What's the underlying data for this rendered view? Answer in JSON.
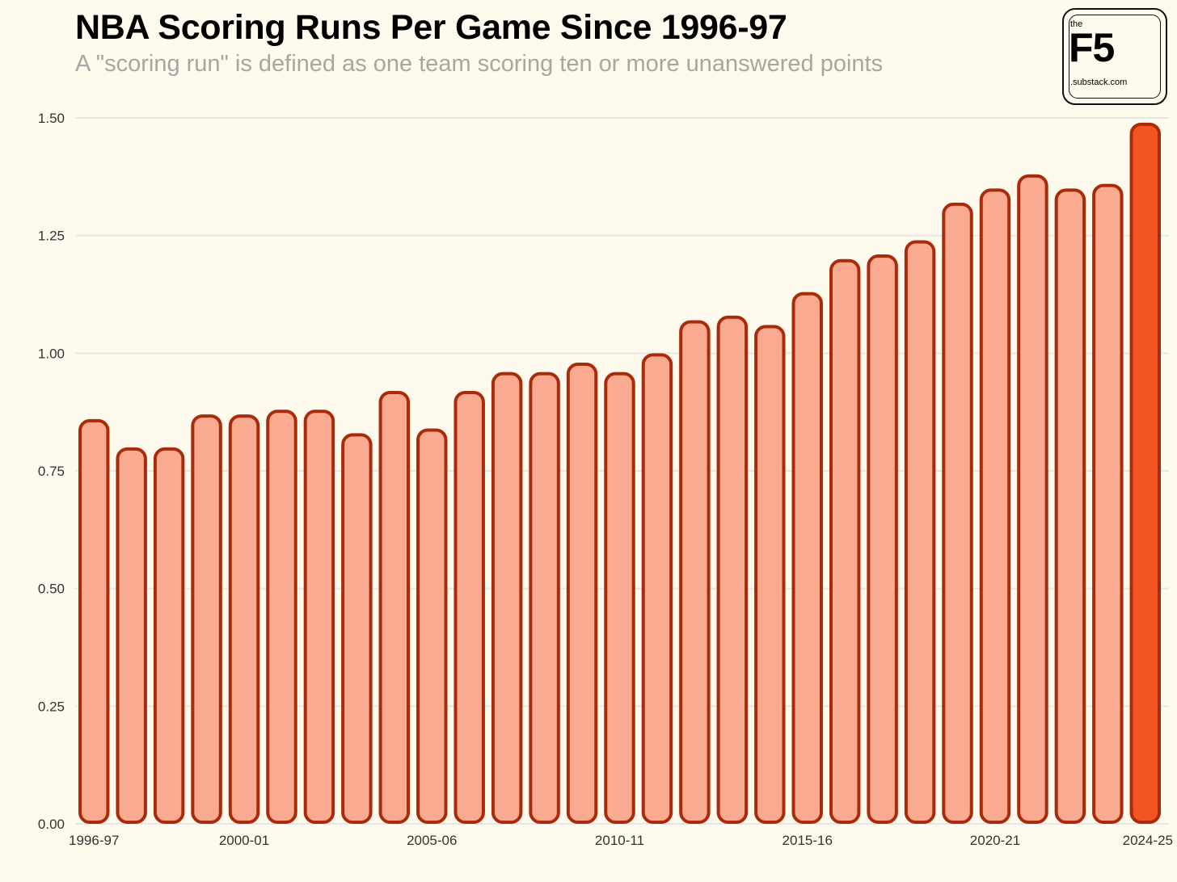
{
  "header": {
    "title": "NBA Scoring Runs Per Game Since 1996-97",
    "subtitle": "A \"scoring run\" is defined as one team scoring ten or more unanswered points"
  },
  "logo": {
    "the": "the",
    "main": "F5",
    "sub": ".substack.com"
  },
  "colors": {
    "background": "#fffaee",
    "bar_fill": "#fbaa92",
    "bar_highlight_fill": "#f45322",
    "bar_stroke": "#a82b0a",
    "grid": "#e6e6e6"
  },
  "chart_data": {
    "type": "bar",
    "categories": [
      "1996-97",
      "1997-98",
      "1998-99",
      "1999-00",
      "2000-01",
      "2001-02",
      "2002-03",
      "2003-04",
      "2004-05",
      "2005-06",
      "2006-07",
      "2007-08",
      "2008-09",
      "2009-10",
      "2010-11",
      "2011-12",
      "2012-13",
      "2013-14",
      "2014-15",
      "2015-16",
      "2016-17",
      "2017-18",
      "2018-19",
      "2019-20",
      "2020-21",
      "2021-22",
      "2022-23",
      "2023-24",
      "2024-25"
    ],
    "values": [
      0.86,
      0.8,
      0.8,
      0.87,
      0.87,
      0.88,
      0.88,
      0.83,
      0.92,
      0.84,
      0.92,
      0.96,
      0.96,
      0.98,
      0.96,
      1.0,
      1.07,
      1.08,
      1.06,
      1.13,
      1.2,
      1.21,
      1.24,
      1.32,
      1.35,
      1.38,
      1.35,
      1.36,
      1.49
    ],
    "highlight_index": 28,
    "x_tick_labels": [
      "1996-97",
      "2000-01",
      "2005-06",
      "2010-11",
      "2015-16",
      "2020-21",
      "2024-25"
    ],
    "y_ticks": [
      "0.00",
      "0.25",
      "0.50",
      "0.75",
      "1.00",
      "1.25",
      "1.50"
    ],
    "ylim": [
      0,
      1.5
    ],
    "grid": true,
    "legend": "none"
  }
}
